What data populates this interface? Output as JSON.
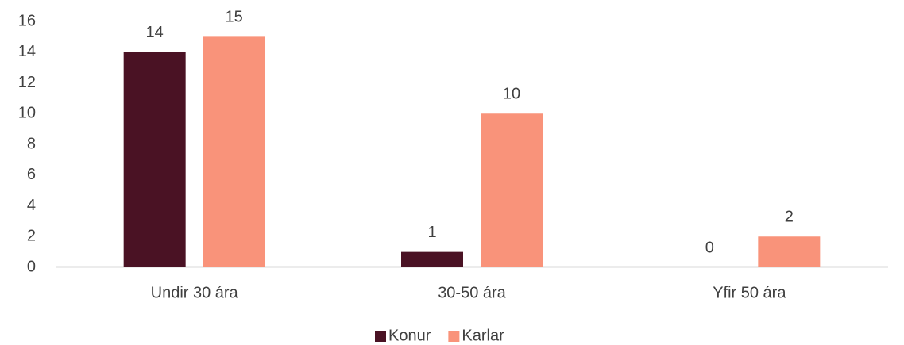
{
  "chart_data": {
    "type": "bar",
    "categories": [
      "Undir 30 ára",
      "30-50 ára",
      "Yfir 50 ára"
    ],
    "series": [
      {
        "name": "Konur",
        "color": "#4a1224",
        "values": [
          14,
          1,
          0
        ]
      },
      {
        "name": "Karlar",
        "color": "#f9937a",
        "values": [
          15,
          10,
          2
        ]
      }
    ],
    "ylim": [
      0,
      16
    ],
    "yticks": [
      0,
      2,
      4,
      6,
      8,
      10,
      12,
      14,
      16
    ],
    "grid": false,
    "legend": "bottom"
  }
}
